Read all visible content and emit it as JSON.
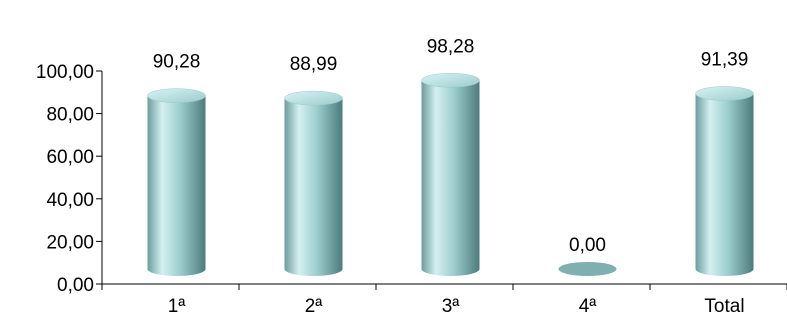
{
  "chart_data": {
    "type": "bar",
    "categories": [
      "1ª",
      "2ª",
      "3ª",
      "4ª",
      "Total"
    ],
    "values": [
      90.28,
      88.99,
      98.28,
      0.0,
      91.39
    ],
    "data_labels": [
      "90,28",
      "88,99",
      "98,28",
      "0,00",
      "91,39"
    ],
    "y_tick_labels": [
      "0,00",
      "20,00",
      "40,00",
      "60,00",
      "80,00",
      "100,00"
    ],
    "ylim": [
      0,
      100
    ],
    "grid": false,
    "legend": "none",
    "title": "",
    "xlabel": "",
    "ylabel": "",
    "bar_style": "3d-cylinder",
    "colors": {
      "bar_light": "#d3f0f0",
      "bar_mid": "#8fc4c4",
      "bar_dark": "#4f7f80",
      "bar_top": "#b8e3e3",
      "axis": "#000000"
    }
  }
}
